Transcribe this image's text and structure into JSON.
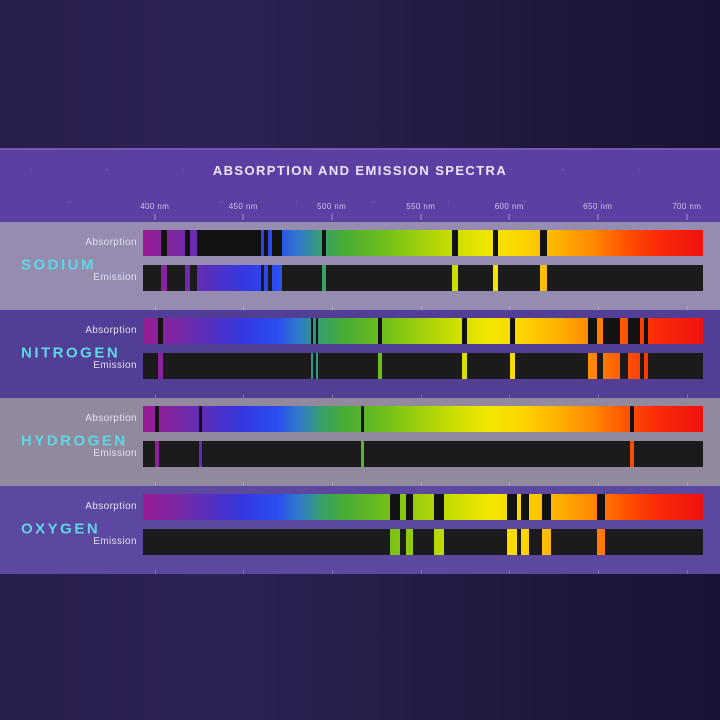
{
  "title": "ABSORPTION AND EMISSION SPECTRA",
  "axis": {
    "unit": "nm",
    "tick_labels": [
      "400 nm",
      "450 nm",
      "500 nm",
      "550 nm",
      "600 nm",
      "650 nm",
      "700 nm"
    ],
    "tick_positions_pct": [
      2.1,
      17.9,
      33.7,
      49.6,
      65.4,
      81.2,
      97.1
    ]
  },
  "row_labels": {
    "absorption": "Absorption",
    "emission": "Emission"
  },
  "colors": {
    "header_band": "#5b3fa2",
    "header_edge": "#7059b5",
    "title_text": "#ece7f7",
    "tick_text": "#cdc4e8",
    "tick_mark": "rgba(226,217,245,0.55)",
    "element_name_text": "#5cd8e3",
    "row_label_text": "#e4dff0",
    "emission_bar_bg": "#1b1b1b",
    "absorption_line": "#121212",
    "plus_decoration": "rgba(255,255,255,0.10)",
    "band_tick": "rgba(255,255,255,0.22)",
    "spectrum_gradient": "linear-gradient(90deg,#9a1c94 0%,#7c28a4 6%,#5530bf 12%,#3538e2 18%,#2b4df2 24%,#2f7dc8 28%,#38a168 32%,#47ad35 36%,#76c016 44%,#a3d108 50%,#cfdf00 56%,#f2e600 62%,#fdd400 68%,#ffb100 74%,#ff8a00 80%,#ff5500 86%,#fb2a07 92%,#f01111 100%)"
  },
  "chart_data": {
    "type": "spectral-bands",
    "title": "ABSORPTION AND EMISSION SPECTRA",
    "x_axis": {
      "label_unit": "nm",
      "ticks": [
        400,
        450,
        500,
        550,
        600,
        650,
        700
      ],
      "bar_range_nm_approx": [
        393,
        710
      ]
    },
    "rows_per_element": [
      "Absorption",
      "Emission"
    ],
    "note": "Absorption rows show black lines over a continuous visible spectrum; Emission rows show the same lines in spectral color on black.",
    "elements": [
      {
        "name": "SODIUM",
        "band_color": "#958CB0",
        "lines": [
          {
            "pct": [
              3.2,
              4.3
            ],
            "nm": [
              403,
              407
            ]
          },
          {
            "pct": [
              7.5,
              8.4
            ],
            "nm": [
              417,
              420
            ]
          },
          {
            "pct": [
              9.6,
              21.1
            ],
            "nm": [
              423,
              460
            ]
          },
          {
            "pct": [
              21.6,
              22.3
            ],
            "nm": [
              461,
              463
            ]
          },
          {
            "pct": [
              23.0,
              24.8
            ],
            "nm": [
              466,
              471
            ]
          },
          {
            "pct": [
              32.0,
              32.7
            ],
            "nm": [
              494,
              496
            ]
          },
          {
            "pct": [
              55.2,
              56.3
            ],
            "nm": [
              567,
              571
            ]
          },
          {
            "pct": [
              62.5,
              63.4
            ],
            "nm": [
              590,
              593
            ]
          },
          {
            "pct": [
              70.9,
              72.1
            ],
            "nm": [
              617,
              621
            ]
          }
        ]
      },
      {
        "name": "NITROGEN",
        "band_color": "#523E94",
        "lines": [
          {
            "pct": [
              2.7,
              3.6
            ],
            "nm": [
              402,
              404
            ]
          },
          {
            "pct": [
              30.0,
              30.4
            ],
            "nm": [
              488,
              489
            ]
          },
          {
            "pct": [
              30.9,
              31.3
            ],
            "nm": [
              491,
              492
            ]
          },
          {
            "pct": [
              42.0,
              42.7
            ],
            "nm": [
              526,
              528
            ]
          },
          {
            "pct": [
              57.0,
              57.9
            ],
            "nm": [
              573,
              576
            ]
          },
          {
            "pct": [
              65.5,
              66.4
            ],
            "nm": [
              600,
              603
            ]
          },
          {
            "pct": [
              79.5,
              81.1
            ],
            "nm": [
              644,
              649
            ]
          },
          {
            "pct": [
              82.1,
              85.2
            ],
            "nm": [
              652,
              662
            ]
          },
          {
            "pct": [
              86.6,
              88.8
            ],
            "nm": [
              666,
              673
            ]
          },
          {
            "pct": [
              89.5,
              90.2
            ],
            "nm": [
              676,
              678
            ]
          }
        ]
      },
      {
        "name": "HYDROGEN",
        "band_color": "#93899E",
        "lines": [
          {
            "pct": [
              2.1,
              2.9
            ],
            "nm": [
              400,
              402
            ]
          },
          {
            "pct": [
              10.0,
              10.5
            ],
            "nm": [
              425,
              426
            ]
          },
          {
            "pct": [
              38.9,
              39.5
            ],
            "nm": [
              516,
              518
            ]
          },
          {
            "pct": [
              87.0,
              87.7
            ],
            "nm": [
              668,
              670
            ]
          }
        ]
      },
      {
        "name": "OXYGEN",
        "band_color": "#5C47A1",
        "lines": [
          {
            "pct": [
              44.1,
              45.9
            ],
            "nm": [
              532,
              538
            ]
          },
          {
            "pct": [
              47.0,
              48.2
            ],
            "nm": [
              541,
              545
            ]
          },
          {
            "pct": [
              52.0,
              53.8
            ],
            "nm": [
              557,
              563
            ]
          },
          {
            "pct": [
              65.0,
              66.8
            ],
            "nm": [
              598,
              604
            ]
          },
          {
            "pct": [
              67.5,
              68.9
            ],
            "nm": [
              606,
              611
            ]
          },
          {
            "pct": [
              71.3,
              72.9
            ],
            "nm": [
              618,
              623
            ]
          },
          {
            "pct": [
              81.1,
              82.5
            ],
            "nm": [
              649,
              654
            ]
          }
        ]
      }
    ]
  }
}
